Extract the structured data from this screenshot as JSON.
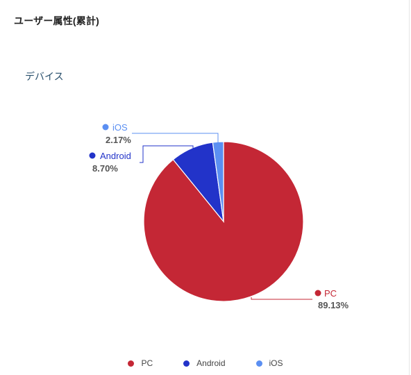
{
  "header": {
    "title": "ユーザー属性(累計)"
  },
  "chart_data": {
    "type": "pie",
    "title": "デバイス",
    "slices": [
      {
        "label": "PC",
        "value": 89.13,
        "display": "89.13%",
        "color": "#c42735"
      },
      {
        "label": "Android",
        "value": 8.7,
        "display": "8.70%",
        "color": "#2233c9"
      },
      {
        "label": "iOS",
        "value": 2.17,
        "display": "2.17%",
        "color": "#5b8ff2"
      }
    ],
    "legend_position": "bottom"
  }
}
